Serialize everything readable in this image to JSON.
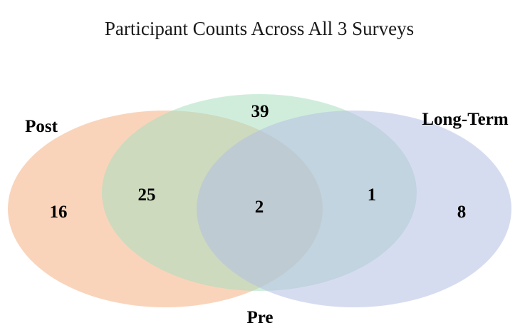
{
  "title": "Participant Counts Across All 3 Surveys",
  "sets": {
    "post": {
      "label": "Post",
      "color": "#f4b183"
    },
    "pre": {
      "label": "Pre",
      "color": "#a9dfbf"
    },
    "long_term": {
      "label": "Long-Term",
      "color": "#b4c0e4"
    }
  },
  "regions": {
    "post_only": "16",
    "post_pre": "25",
    "pre_only": "39",
    "all_three": "2",
    "pre_long_term": "1",
    "long_term_only": "8"
  }
}
